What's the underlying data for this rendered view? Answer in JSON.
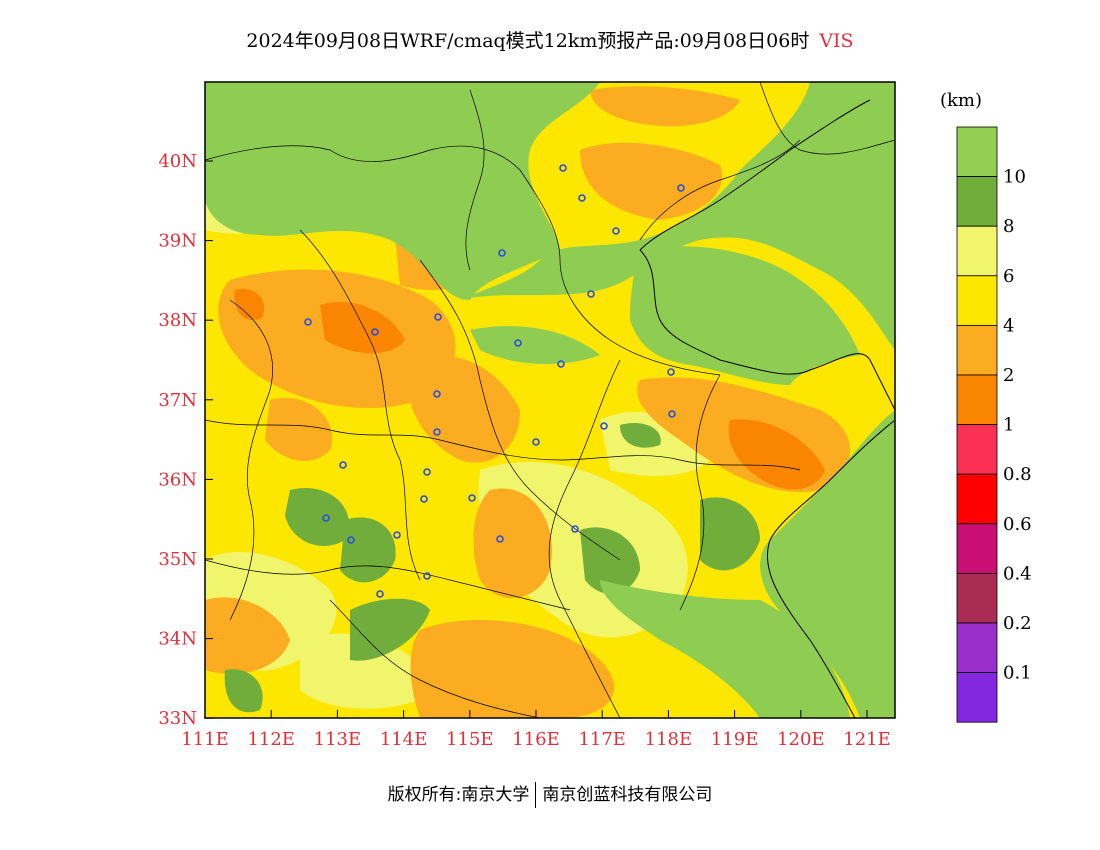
{
  "title": {
    "text": "2024年09月08日WRF/cmaq模式12km预报产品:09月08日06时",
    "variable": "VIS"
  },
  "colorbar": {
    "unit": "(km)",
    "labels": [
      "10",
      "8",
      "6",
      "4",
      "2",
      "1",
      "0.8",
      "0.6",
      "0.4",
      "0.2",
      "0.1"
    ],
    "colors": [
      "#92cf52",
      "#70ad3a",
      "#f1f56b",
      "#fde600",
      "#fbac20",
      "#fa8500",
      "#fc2f55",
      "#fe0000",
      "#c90f73",
      "#a82c54",
      "#9a2fcb",
      "#8427e0"
    ]
  },
  "axes": {
    "lon_labels": [
      "111E",
      "112E",
      "113E",
      "114E",
      "115E",
      "116E",
      "117E",
      "118E",
      "119E",
      "120E",
      "121E"
    ],
    "lat_labels": [
      "40N",
      "39N",
      "38N",
      "37N",
      "36N",
      "35N",
      "34N",
      "33N"
    ]
  },
  "map_colors": {
    "sea": "#8fcc52",
    "green_dark": "#70ad3a",
    "yellow_light": "#f1f56b",
    "yellow": "#fde600",
    "orange_light": "#fbac20",
    "orange": "#fa8500",
    "station": "#2b4de0"
  },
  "footer": {
    "left": "版权所有:南京大学",
    "right": "南京创蓝科技有限公司"
  }
}
